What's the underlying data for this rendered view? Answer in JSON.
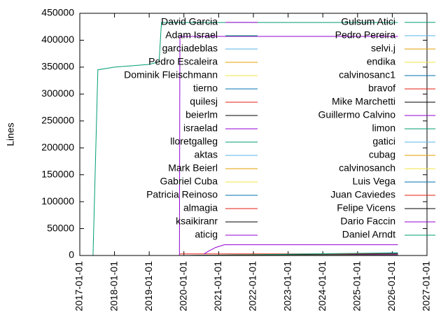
{
  "chart_data": {
    "type": "line",
    "y_label": "Lines",
    "xlim": [
      "2017-01-01",
      "2027-01-01"
    ],
    "xticks": [
      "2017-01-01",
      "2018-01-01",
      "2019-01-01",
      "2020-01-01",
      "2021-01-01",
      "2022-01-01",
      "2023-01-01",
      "2024-01-01",
      "2025-01-01",
      "2026-01-01",
      "2027-01-01"
    ],
    "ylim": [
      0,
      450000
    ],
    "yticks": [
      0,
      50000,
      100000,
      150000,
      200000,
      250000,
      300000,
      350000,
      400000,
      450000
    ],
    "series": [
      {
        "name": "David Garcia",
        "color": "#9400d3",
        "x": [
          "2019-11-15",
          "2019-11-20",
          "2026-03-01"
        ],
        "values": [
          0,
          407000,
          407000
        ]
      },
      {
        "name": "Adam Israel",
        "color": "#009e73",
        "x": [
          "2017-05-20",
          "2017-07-10",
          "2018-01-01",
          "2019-01-01",
          "2019-04-15",
          "2019-05-10",
          "2026-03-01"
        ],
        "values": [
          0,
          345000,
          350000,
          355000,
          360000,
          433000,
          433000
        ]
      },
      {
        "name": "garciadeblas",
        "color": "#56b4e9",
        "x": [
          "2019-11-20",
          "2026-03-01"
        ],
        "values": [
          0,
          3000
        ]
      },
      {
        "name": "Pedro Escaleira",
        "color": "#e69f00",
        "x": [
          "2020-01-01",
          "2026-03-01"
        ],
        "values": [
          0,
          2000
        ]
      },
      {
        "name": "Dominik Fleischmann",
        "color": "#f0e442",
        "x": [
          "2020-01-01",
          "2026-03-01"
        ],
        "values": [
          0,
          1500
        ]
      },
      {
        "name": "tierno",
        "color": "#0072b2",
        "x": [
          "2019-12-01",
          "2026-03-01"
        ],
        "values": [
          0,
          4000
        ]
      },
      {
        "name": "quilesj",
        "color": "#e51e10",
        "x": [
          "2019-11-20",
          "2026-03-01"
        ],
        "values": [
          3000,
          3000
        ]
      },
      {
        "name": "beierlm",
        "color": "#000000",
        "x": [
          "2020-06-01",
          "2026-03-01"
        ],
        "values": [
          0,
          2500
        ]
      },
      {
        "name": "israelad",
        "color": "#9400d3",
        "x": [
          "2020-08-01",
          "2020-09-15",
          "2020-12-01",
          "2021-03-01",
          "2026-03-01"
        ],
        "values": [
          3000,
          8000,
          15000,
          20000,
          20000
        ]
      },
      {
        "name": "lloretgalleg",
        "color": "#009e73",
        "x": [
          "2020-03-01",
          "2026-03-01"
        ],
        "values": [
          0,
          5000
        ]
      },
      {
        "name": "aktas",
        "color": "#56b4e9",
        "x": [
          "2021-01-01",
          "2026-03-01"
        ],
        "values": [
          0,
          1000
        ]
      },
      {
        "name": "Mark Beierl",
        "color": "#e69f00",
        "x": [
          "2021-01-01",
          "2026-03-01"
        ],
        "values": [
          0,
          1200
        ]
      },
      {
        "name": "Gabriel Cuba",
        "color": "#f0e442",
        "x": [
          "2022-01-01",
          "2026-03-01"
        ],
        "values": [
          0,
          1800
        ]
      },
      {
        "name": "Patricia Reinoso",
        "color": "#0072b2",
        "x": [
          "2021-06-01",
          "2026-03-01"
        ],
        "values": [
          0,
          1000
        ]
      },
      {
        "name": "almagia",
        "color": "#e51e10",
        "x": [
          "2020-06-01",
          "2026-03-01"
        ],
        "values": [
          0,
          800
        ]
      },
      {
        "name": "ksaikiranr",
        "color": "#000000",
        "x": [
          "2020-09-01",
          "2026-03-01"
        ],
        "values": [
          0,
          700
        ]
      },
      {
        "name": "aticig",
        "color": "#9400d3",
        "x": [
          "2022-01-01",
          "2026-03-01"
        ],
        "values": [
          0,
          1500
        ]
      },
      {
        "name": "Gulsum Atici",
        "color": "#009e73",
        "x": [
          "2022-06-01",
          "2026-03-01"
        ],
        "values": [
          0,
          600
        ]
      },
      {
        "name": "Pedro Pereira",
        "color": "#56b4e9",
        "x": [
          "2023-01-01",
          "2026-03-01"
        ],
        "values": [
          0,
          500
        ]
      },
      {
        "name": "selvi.j",
        "color": "#e69f00",
        "x": [
          "2021-01-01",
          "2026-03-01"
        ],
        "values": [
          0,
          400
        ]
      },
      {
        "name": "endika",
        "color": "#f0e442",
        "x": [
          "2020-01-01",
          "2026-03-01"
        ],
        "values": [
          0,
          600
        ]
      },
      {
        "name": "calvinosanc1",
        "color": "#0072b2",
        "x": [
          "2019-12-01",
          "2026-03-01"
        ],
        "values": [
          0,
          500
        ]
      },
      {
        "name": "bravof",
        "color": "#e51e10",
        "x": [
          "2020-01-01",
          "2026-03-01"
        ],
        "values": [
          0,
          400
        ]
      },
      {
        "name": "Mike Marchetti",
        "color": "#000000",
        "x": [
          "2020-01-01",
          "2026-03-01"
        ],
        "values": [
          0,
          300
        ]
      },
      {
        "name": "Guillermo Calvino",
        "color": "#9400d3",
        "x": [
          "2022-01-01",
          "2026-03-01"
        ],
        "values": [
          0,
          300
        ]
      },
      {
        "name": "limon",
        "color": "#009e73",
        "x": [
          "2020-01-01",
          "2026-03-01"
        ],
        "values": [
          0,
          300
        ]
      },
      {
        "name": "gatici",
        "color": "#56b4e9",
        "x": [
          "2022-01-01",
          "2026-03-01"
        ],
        "values": [
          0,
          200
        ]
      },
      {
        "name": "cubag",
        "color": "#e69f00",
        "x": [
          "2022-01-01",
          "2026-03-01"
        ],
        "values": [
          0,
          200
        ]
      },
      {
        "name": "calvinosanch",
        "color": "#f0e442",
        "x": [
          "2020-01-01",
          "2026-03-01"
        ],
        "values": [
          0,
          200
        ]
      },
      {
        "name": "Luis Vega",
        "color": "#0072b2",
        "x": [
          "2023-01-01",
          "2026-03-01"
        ],
        "values": [
          0,
          200
        ]
      },
      {
        "name": "Juan Caviedes",
        "color": "#e51e10",
        "x": [
          "2022-01-01",
          "2026-03-01"
        ],
        "values": [
          0,
          100
        ]
      },
      {
        "name": "Felipe Vicens",
        "color": "#000000",
        "x": [
          "2020-01-01",
          "2026-03-01"
        ],
        "values": [
          0,
          100
        ]
      },
      {
        "name": "Dario Faccin",
        "color": "#9400d3",
        "x": [
          "2022-01-01",
          "2026-03-01"
        ],
        "values": [
          0,
          100
        ]
      },
      {
        "name": "Daniel Arndt",
        "color": "#009e73",
        "x": [
          "2023-01-01",
          "2026-03-01"
        ],
        "values": [
          0,
          100
        ]
      }
    ]
  }
}
